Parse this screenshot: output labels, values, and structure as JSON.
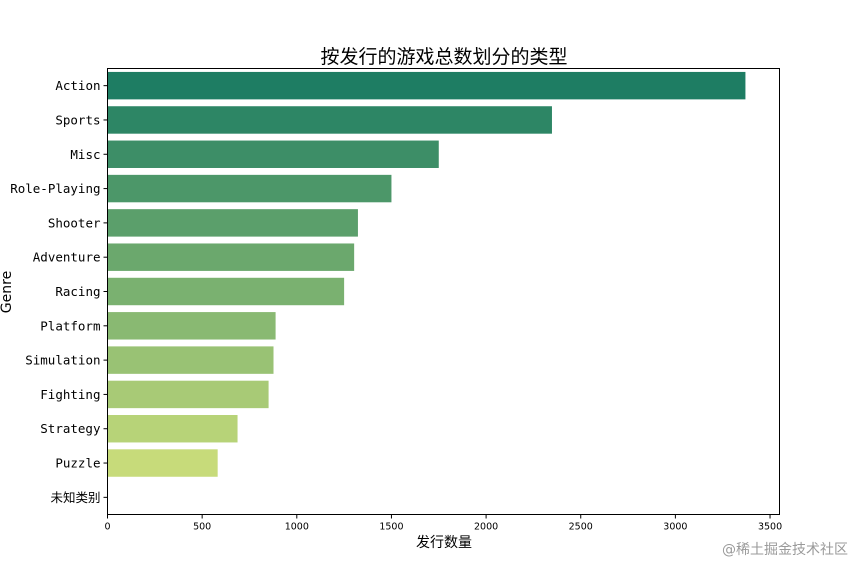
{
  "chart_data": {
    "type": "bar",
    "orientation": "horizontal",
    "title": "按发行的游戏总数划分的类型",
    "xlabel": "发行数量",
    "ylabel": "Genre",
    "categories": [
      "Action",
      "Sports",
      "Misc",
      "Role-Playing",
      "Shooter",
      "Adventure",
      "Racing",
      "Platform",
      "Simulation",
      "Fighting",
      "Strategy",
      "Puzzle",
      "未知类别"
    ],
    "values": [
      3370,
      2348,
      1750,
      1500,
      1323,
      1303,
      1250,
      888,
      877,
      851,
      687,
      582,
      2
    ],
    "xlim": [
      0,
      3550
    ],
    "xticks": [
      0,
      500,
      1000,
      1500,
      2000,
      2500,
      3000,
      3500
    ],
    "grid": false,
    "colormap": "summer",
    "color_start": "#1e7d63",
    "color_end": "#d6e47c"
  },
  "watermark": "@稀土掘金技术社区"
}
